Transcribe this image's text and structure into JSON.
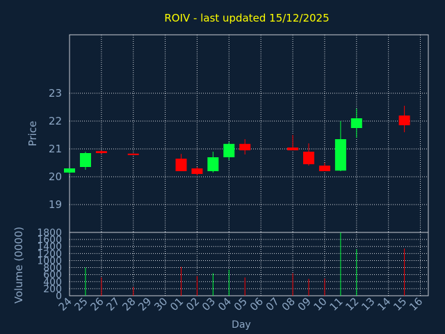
{
  "chart_data": {
    "type": "candlestick",
    "title": "ROIV - last updated 15/12/2025",
    "colors": {
      "background": "#0e1f33",
      "title": "#ffff00",
      "axis_text": "#8ea8c6",
      "grid": "#d9dde3",
      "frame": "#c9ced6",
      "up": "#00ff3a",
      "down": "#ff0000"
    },
    "price": {
      "ylabel": "Price",
      "ylim": [
        18.0,
        25.1
      ],
      "yticks": [
        19,
        20,
        21,
        22,
        23
      ],
      "candles": [
        {
          "day": "24",
          "open": 20.15,
          "high": 20.3,
          "low": 20.1,
          "close": 20.3
        },
        {
          "day": "25",
          "open": 20.35,
          "high": 20.9,
          "low": 20.25,
          "close": 20.85
        },
        {
          "day": "26",
          "open": 20.92,
          "high": 20.95,
          "low": 20.82,
          "close": 20.85
        },
        {
          "day": "28",
          "open": 20.83,
          "high": 20.85,
          "low": 20.79,
          "close": 20.8
        },
        {
          "day": "01",
          "open": 20.65,
          "high": 20.82,
          "low": 20.2,
          "close": 20.2
        },
        {
          "day": "02",
          "open": 20.3,
          "high": 20.35,
          "low": 20.05,
          "close": 20.1
        },
        {
          "day": "03",
          "open": 20.2,
          "high": 20.9,
          "low": 20.15,
          "close": 20.7
        },
        {
          "day": "04",
          "open": 20.7,
          "high": 21.25,
          "low": 20.6,
          "close": 21.18
        },
        {
          "day": "05",
          "open": 21.18,
          "high": 21.35,
          "low": 20.8,
          "close": 20.95
        },
        {
          "day": "08",
          "open": 21.05,
          "high": 21.5,
          "low": 20.95,
          "close": 20.95
        },
        {
          "day": "09",
          "open": 20.9,
          "high": 21.2,
          "low": 20.4,
          "close": 20.45
        },
        {
          "day": "10",
          "open": 20.4,
          "high": 20.5,
          "low": 20.2,
          "close": 20.2
        },
        {
          "day": "11",
          "open": 20.22,
          "high": 22.0,
          "low": 20.2,
          "close": 21.35
        },
        {
          "day": "12",
          "open": 21.75,
          "high": 22.45,
          "low": 21.4,
          "close": 22.1
        },
        {
          "day": "15",
          "open": 22.2,
          "high": 22.55,
          "low": 21.6,
          "close": 21.85
        }
      ]
    },
    "volume": {
      "ylabel": "Volume (0000)",
      "ylim": [
        0,
        1800
      ],
      "yticks": [
        0,
        200,
        400,
        600,
        800,
        1000,
        1200,
        1400,
        1600,
        1800
      ],
      "bars": [
        {
          "day": "25",
          "value": 800,
          "direction": "up"
        },
        {
          "day": "26",
          "value": 520,
          "direction": "down"
        },
        {
          "day": "28",
          "value": 250,
          "direction": "down"
        },
        {
          "day": "01",
          "value": 820,
          "direction": "down"
        },
        {
          "day": "02",
          "value": 560,
          "direction": "down"
        },
        {
          "day": "03",
          "value": 640,
          "direction": "up"
        },
        {
          "day": "04",
          "value": 740,
          "direction": "up"
        },
        {
          "day": "05",
          "value": 520,
          "direction": "down"
        },
        {
          "day": "08",
          "value": 640,
          "direction": "down"
        },
        {
          "day": "09",
          "value": 480,
          "direction": "down"
        },
        {
          "day": "10",
          "value": 490,
          "direction": "down"
        },
        {
          "day": "11",
          "value": 1800,
          "direction": "up"
        },
        {
          "day": "12",
          "value": 1320,
          "direction": "up"
        },
        {
          "day": "15",
          "value": 1340,
          "direction": "down"
        }
      ]
    },
    "x": {
      "xlabel": "Day",
      "categories": [
        "24",
        "25",
        "26",
        "27",
        "28",
        "29",
        "30",
        "01",
        "02",
        "03",
        "04",
        "05",
        "06",
        "07",
        "08",
        "09",
        "10",
        "11",
        "12",
        "13",
        "14",
        "15",
        "16"
      ]
    },
    "grid": true
  }
}
